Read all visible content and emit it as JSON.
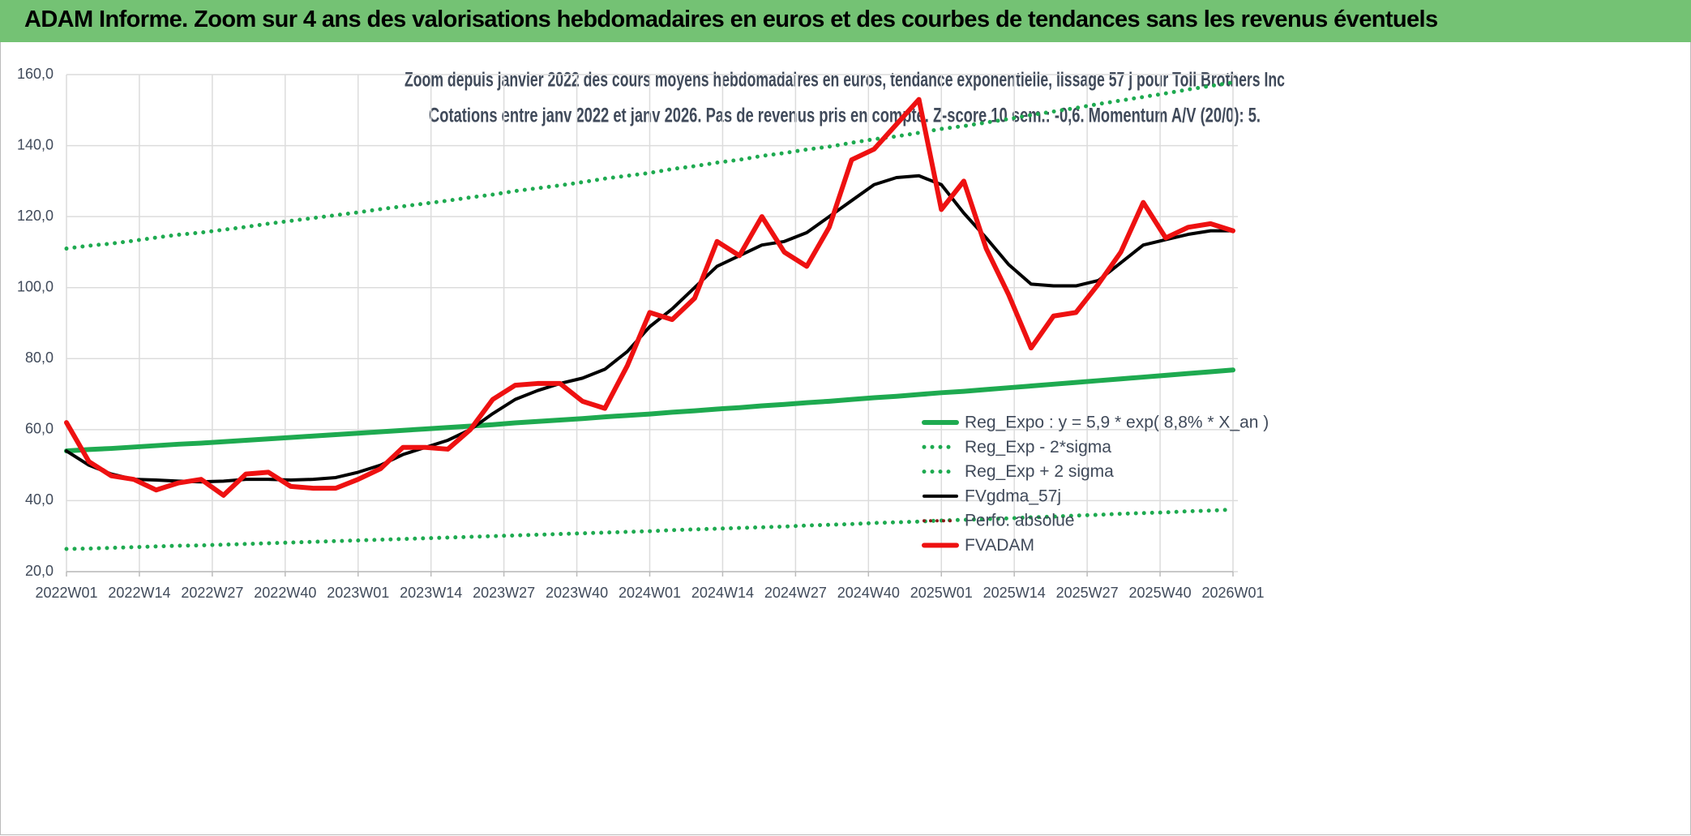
{
  "header": {
    "title": "ADAM Informe. Zoom sur 4 ans des valorisations hebdomadaires en euros et des courbes de tendances sans les revenus éventuels"
  },
  "chart_data": {
    "type": "line",
    "title": "Zoom depuis janvier 2022 des cours moyens hebdomadaires en euros, tendance exponentielle, lissage 57 j pour Toll Brothers Inc",
    "subtitle": "Cotations entre janv 2022 et janv 2026. Pas de revenus pris en compte. Z-score 10 sem.: -0,6. Momentum A/V (20/0): 5.",
    "x": [
      0,
      4,
      8,
      12,
      16,
      20,
      24,
      28,
      32,
      36,
      40,
      44,
      48,
      52,
      56,
      60,
      64,
      68,
      72,
      76,
      80,
      84,
      88,
      92,
      96,
      100,
      104,
      108,
      112,
      116,
      120,
      124,
      128,
      132,
      136,
      140,
      144,
      148,
      152,
      156,
      160,
      164,
      168,
      172,
      176,
      180,
      184,
      188,
      192,
      196,
      200,
      204,
      208
    ],
    "xlim": [
      0,
      208
    ],
    "xticks": [
      {
        "value": 0,
        "label": "2022W01"
      },
      {
        "value": 13,
        "label": "2022W14"
      },
      {
        "value": 26,
        "label": "2022W27"
      },
      {
        "value": 39,
        "label": "2022W40"
      },
      {
        "value": 52,
        "label": "2023W01"
      },
      {
        "value": 65,
        "label": "2023W14"
      },
      {
        "value": 78,
        "label": "2023W27"
      },
      {
        "value": 91,
        "label": "2023W40"
      },
      {
        "value": 104,
        "label": "2024W01"
      },
      {
        "value": 117,
        "label": "2024W14"
      },
      {
        "value": 130,
        "label": "2024W27"
      },
      {
        "value": 143,
        "label": "2024W40"
      },
      {
        "value": 156,
        "label": "2025W01"
      },
      {
        "value": 169,
        "label": "2025W14"
      },
      {
        "value": 182,
        "label": "2025W27"
      },
      {
        "value": 195,
        "label": "2025W40"
      },
      {
        "value": 208,
        "label": "2026W01"
      }
    ],
    "ylim": [
      20,
      160
    ],
    "yticks": [
      {
        "value": 20,
        "label": "20,0"
      },
      {
        "value": 40,
        "label": "40,0"
      },
      {
        "value": 60,
        "label": "60,0"
      },
      {
        "value": 80,
        "label": "80,0"
      },
      {
        "value": 100,
        "label": "100,0"
      },
      {
        "value": 120,
        "label": "120,0"
      },
      {
        "value": 140,
        "label": "140,0"
      },
      {
        "value": 160,
        "label": "160,0"
      }
    ],
    "grid": true,
    "legend": "lower right",
    "series": [
      {
        "name": "Reg_Expo : y = 5,9 * exp( 8,8% *  X_an )",
        "color": "#1eaa50",
        "style": "solid",
        "width": 6,
        "values": [
          54.0,
          54.4,
          54.7,
          55.1,
          55.5,
          55.9,
          56.2,
          56.6,
          57.0,
          57.4,
          57.8,
          58.2,
          58.6,
          59.0,
          59.4,
          59.8,
          60.2,
          60.6,
          61.0,
          61.4,
          61.9,
          62.3,
          62.7,
          63.1,
          63.6,
          64.0,
          64.4,
          64.9,
          65.3,
          65.8,
          66.2,
          66.7,
          67.1,
          67.6,
          68.0,
          68.5,
          69.0,
          69.4,
          69.9,
          70.4,
          70.8,
          71.3,
          71.8,
          72.3,
          72.8,
          73.3,
          73.8,
          74.3,
          74.8,
          75.3,
          75.8,
          76.3,
          76.8
        ]
      },
      {
        "name": "Reg_Exp - 2*sigma",
        "color": "#1eaa50",
        "style": "dotted",
        "width": 5,
        "values": [
          26.4,
          26.5,
          26.7,
          26.9,
          27.1,
          27.3,
          27.4,
          27.6,
          27.8,
          28.0,
          28.2,
          28.4,
          28.6,
          28.8,
          29.0,
          29.2,
          29.4,
          29.6,
          29.8,
          30.0,
          30.2,
          30.4,
          30.6,
          30.8,
          31.0,
          31.2,
          31.4,
          31.7,
          31.9,
          32.1,
          32.3,
          32.5,
          32.7,
          33.0,
          33.2,
          33.4,
          33.7,
          33.9,
          34.1,
          34.4,
          34.6,
          34.8,
          35.0,
          35.3,
          35.5,
          35.8,
          36.0,
          36.3,
          36.5,
          36.7,
          37.0,
          37.2,
          37.5
        ]
      },
      {
        "name": "Reg_Exp + 2 sigma",
        "color": "#1eaa50",
        "style": "dotted",
        "width": 5,
        "values": [
          111.0,
          111.8,
          112.4,
          113.2,
          114.1,
          114.9,
          115.5,
          116.3,
          117.1,
          118.0,
          118.8,
          119.6,
          120.4,
          121.2,
          122.1,
          122.9,
          123.7,
          124.5,
          125.4,
          126.2,
          127.2,
          128.0,
          128.8,
          129.7,
          130.7,
          131.5,
          132.3,
          133.4,
          134.2,
          135.2,
          136.0,
          137.1,
          137.9,
          138.9,
          139.7,
          140.8,
          141.8,
          142.6,
          143.6,
          144.7,
          145.5,
          146.5,
          147.5,
          148.6,
          149.6,
          150.6,
          151.7,
          152.7,
          153.7,
          154.7,
          155.8,
          156.8,
          157.8
        ]
      },
      {
        "name": "FVgdma_57j",
        "color": "#000000",
        "style": "solid",
        "width": 4,
        "values": [
          54,
          50,
          47.5,
          46,
          45.8,
          45.5,
          45.3,
          45.5,
          46,
          46,
          45.8,
          46,
          46.5,
          48,
          50,
          53,
          55,
          57,
          60,
          64.5,
          68.5,
          71,
          73,
          74.5,
          77,
          82,
          89,
          94,
          100,
          106,
          109,
          112,
          113,
          115.5,
          120,
          124.5,
          129,
          131,
          131.5,
          129,
          121,
          114,
          106.5,
          101,
          100.5,
          100.5,
          102,
          107,
          112,
          113.5,
          115,
          116,
          116
        ]
      },
      {
        "name": "Perfo. absolue",
        "color": "#8b1a1a",
        "style": "dotted",
        "width": 4
      },
      {
        "name": "FVADAM",
        "color": "#ee1111",
        "style": "solid",
        "width": 6,
        "values": [
          62,
          51,
          47,
          46,
          43,
          45,
          46,
          41.5,
          47.5,
          48,
          44,
          43.5,
          43.5,
          46,
          49,
          55,
          55,
          54.5,
          60,
          68.5,
          72.5,
          73,
          73,
          68,
          66,
          78,
          93,
          91,
          97,
          113,
          109,
          120,
          110,
          106,
          117,
          136,
          139,
          146,
          153,
          122,
          130,
          111,
          98,
          83,
          92,
          93,
          101,
          110,
          124,
          114,
          117,
          118,
          116
        ]
      }
    ]
  }
}
